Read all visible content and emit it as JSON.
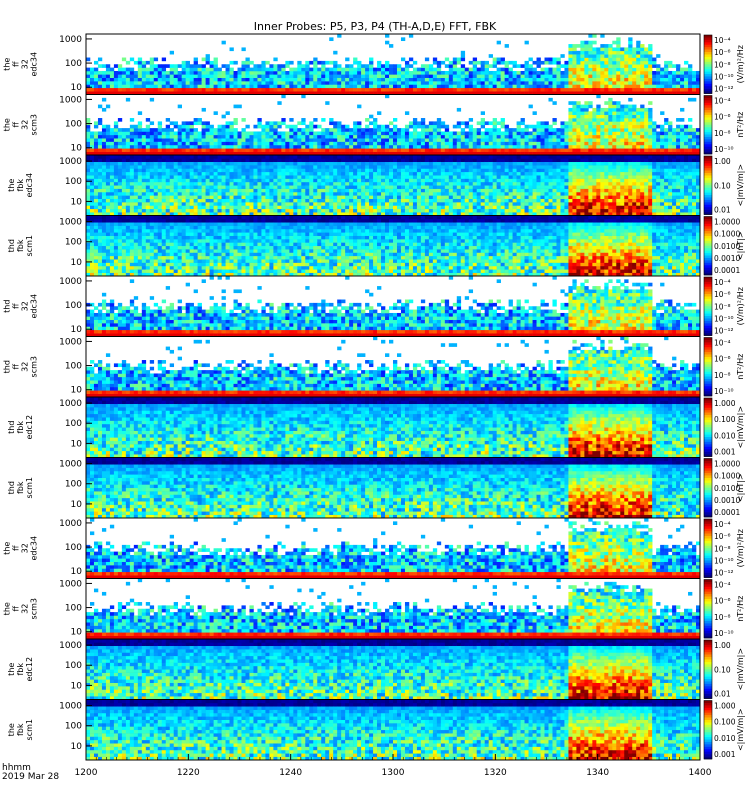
{
  "title": "Inner Probes: P5, P3, P4 (TH-A,D,E) FFT, FBK",
  "x_axis": {
    "ticks": [
      "1200",
      "1220",
      "1240",
      "1300",
      "1320",
      "1340",
      "1400"
    ],
    "corner_label": "hhmm",
    "date_label": "2019 Mar 28"
  },
  "chart_data": {
    "type": "heatmap",
    "time_range": [
      "12:00",
      "14:00"
    ],
    "panels": [
      {
        "name": "the ff 32 edc34",
        "label": [
          "the",
          "ff",
          "32",
          "edc34"
        ],
        "kind": "fft",
        "ylim": [
          5,
          1600
        ],
        "yticks": [
          "1000",
          "100",
          "10"
        ],
        "colorbar": {
          "labels": [
            "10⁻⁴",
            "10⁻⁶",
            "10⁻⁸",
            "10⁻¹⁰",
            "10⁻¹²"
          ],
          "unit": "(V/m)²/Hz"
        }
      },
      {
        "name": "the ff 32 scm3",
        "label": [
          "the",
          "ff",
          "32",
          "scm3"
        ],
        "kind": "fft",
        "ylim": [
          5,
          1600
        ],
        "yticks": [
          "1000",
          "100",
          "10"
        ],
        "colorbar": {
          "labels": [
            "10⁻⁴",
            "10⁻⁶",
            "10⁻⁸",
            "10⁻¹⁰"
          ],
          "unit": "nT²/Hz"
        }
      },
      {
        "name": "the fbk edc34",
        "label": [
          "the",
          "fbk",
          "edc34"
        ],
        "kind": "fbk",
        "ylim": [
          2,
          2000
        ],
        "yticks": [
          "1000",
          "100",
          "10"
        ],
        "colorbar": {
          "labels": [
            "1.00",
            "0.10",
            "0.01"
          ],
          "unit": "<|mV/m|>"
        }
      },
      {
        "name": "thd fbk scm1",
        "label": [
          "thd",
          "fbk",
          "scm1"
        ],
        "kind": "fbk",
        "ylim": [
          2,
          2000
        ],
        "yticks": [
          "1000",
          "100",
          "10"
        ],
        "colorbar": {
          "labels": [
            "1.0000",
            "0.1000",
            "0.0100",
            "0.0010",
            "0.0001"
          ],
          "unit": "<|nT|>"
        }
      },
      {
        "name": "thd ff 32 edc34",
        "label": [
          "thd",
          "ff",
          "32",
          "edc34"
        ],
        "kind": "fft",
        "ylim": [
          5,
          1600
        ],
        "yticks": [
          "1000",
          "100",
          "10"
        ],
        "colorbar": {
          "labels": [
            "10⁻⁴",
            "10⁻⁶",
            "10⁻⁸",
            "10⁻¹⁰",
            "10⁻¹²"
          ],
          "unit": "(V/m)²/Hz"
        }
      },
      {
        "name": "thd ff 32 scm3",
        "label": [
          "thd",
          "ff",
          "32",
          "scm3"
        ],
        "kind": "fft",
        "ylim": [
          5,
          1600
        ],
        "yticks": [
          "1000",
          "100",
          "10"
        ],
        "colorbar": {
          "labels": [
            "10⁻⁴",
            "10⁻⁶",
            "10⁻⁸",
            "10⁻¹⁰"
          ],
          "unit": "nT²/Hz"
        }
      },
      {
        "name": "thd fbk edc12",
        "label": [
          "thd",
          "fbk",
          "edc12"
        ],
        "kind": "fbk",
        "ylim": [
          2,
          2000
        ],
        "yticks": [
          "1000",
          "100",
          "10"
        ],
        "colorbar": {
          "labels": [
            "1.000",
            "0.100",
            "0.010",
            "0.001"
          ],
          "unit": "<|mV/m|>"
        }
      },
      {
        "name": "thd fbk scm1",
        "label": [
          "thd",
          "fbk",
          "scm1"
        ],
        "kind": "fbk",
        "ylim": [
          2,
          2000
        ],
        "yticks": [
          "1000",
          "100",
          "10"
        ],
        "colorbar": {
          "labels": [
            "1.0000",
            "0.1000",
            "0.0100",
            "0.0010",
            "0.0001"
          ],
          "unit": "<|nT|>"
        }
      },
      {
        "name": "the ff 32 edc34",
        "label": [
          "the",
          "ff",
          "32",
          "edc34"
        ],
        "kind": "fft",
        "ylim": [
          5,
          1600
        ],
        "yticks": [
          "1000",
          "100",
          "10"
        ],
        "colorbar": {
          "labels": [
            "10⁻⁴",
            "10⁻⁶",
            "10⁻⁸",
            "10⁻¹⁰",
            "10⁻¹²"
          ],
          "unit": "(V/m)²/Hz"
        }
      },
      {
        "name": "the ff 32 scm3",
        "label": [
          "the",
          "ff",
          "32",
          "scm3"
        ],
        "kind": "fft",
        "ylim": [
          5,
          1600
        ],
        "yticks": [
          "1000",
          "100",
          "10"
        ],
        "colorbar": {
          "labels": [
            "10⁻⁴",
            "10⁻⁶",
            "10⁻⁸",
            "10⁻¹⁰"
          ],
          "unit": "nT²/Hz"
        }
      },
      {
        "name": "the fbk edc12",
        "label": [
          "the",
          "fbk",
          "edc12"
        ],
        "kind": "fbk",
        "ylim": [
          2,
          2000
        ],
        "yticks": [
          "1000",
          "100",
          "10"
        ],
        "colorbar": {
          "labels": [
            "1.00",
            "0.10",
            "0.01"
          ],
          "unit": "<|mV/m|>"
        }
      },
      {
        "name": "the fbk scm1",
        "label": [
          "the",
          "fbk",
          "scm1"
        ],
        "kind": "fbk",
        "ylim": [
          2,
          2000
        ],
        "yticks": [
          "1000",
          "100",
          "10"
        ],
        "colorbar": {
          "labels": [
            "1.000",
            "0.100",
            "0.010",
            "0.001"
          ],
          "unit": "<|mV/m|>"
        }
      }
    ]
  }
}
